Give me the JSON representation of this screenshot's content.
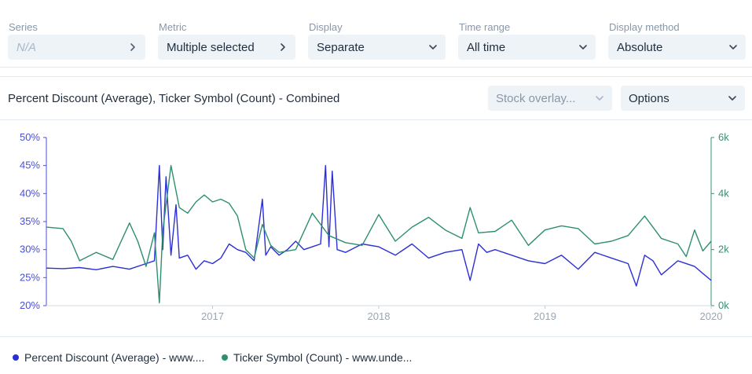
{
  "filters": [
    {
      "label": "Series",
      "value": "N/A",
      "disabled": true,
      "icon": "chevron-right-icon"
    },
    {
      "label": "Metric",
      "value": "Multiple selected",
      "disabled": false,
      "icon": "chevron-right-icon"
    },
    {
      "label": "Display",
      "value": "Separate",
      "disabled": false,
      "icon": "chevron-down-icon"
    },
    {
      "label": "Time range",
      "value": "All time",
      "disabled": false,
      "icon": "chevron-down-icon"
    },
    {
      "label": "Display method",
      "value": "Absolute",
      "disabled": false,
      "icon": "chevron-down-icon"
    }
  ],
  "card": {
    "title": "Percent Discount (Average), Ticker Symbol (Count) - Combined",
    "overlay_placeholder": "Stock overlay...",
    "options_label": "Options"
  },
  "legend": [
    {
      "label": "Percent Discount (Average) - www....",
      "color": "#2a2fd6"
    },
    {
      "label": "Ticker Symbol (Count) - www.unde...",
      "color": "#2e8f6e"
    }
  ],
  "colors": {
    "left_axis": "#4a4fd6",
    "right_axis": "#3a8f74",
    "accent_bg": "#eef3f8"
  },
  "chart_data": {
    "type": "line",
    "x_range": [
      "2016-01-01",
      "2020-01-01"
    ],
    "x_ticks": [
      "2017",
      "2018",
      "2019",
      "2020"
    ],
    "left_axis": {
      "ylim": [
        20,
        50
      ],
      "ticks": [
        "20%",
        "25%",
        "30%",
        "35%",
        "40%",
        "45%",
        "50%"
      ]
    },
    "right_axis": {
      "ylim": [
        0,
        6000
      ],
      "ticks": [
        "0k",
        "2k",
        "4k",
        "6k"
      ]
    },
    "series": [
      {
        "name": "Percent Discount (Average) - www....",
        "axis": "left",
        "x": [
          2016.0,
          2016.1,
          2016.2,
          2016.3,
          2016.4,
          2016.5,
          2016.6,
          2016.65,
          2016.68,
          2016.7,
          2016.72,
          2016.75,
          2016.78,
          2016.8,
          2016.85,
          2016.9,
          2016.95,
          2017.0,
          2017.05,
          2017.1,
          2017.15,
          2017.2,
          2017.25,
          2017.3,
          2017.32,
          2017.35,
          2017.4,
          2017.45,
          2017.5,
          2017.55,
          2017.6,
          2017.65,
          2017.68,
          2017.7,
          2017.72,
          2017.75,
          2017.8,
          2017.9,
          2018.0,
          2018.1,
          2018.2,
          2018.3,
          2018.4,
          2018.5,
          2018.55,
          2018.6,
          2018.65,
          2018.7,
          2018.8,
          2018.9,
          2019.0,
          2019.1,
          2019.2,
          2019.3,
          2019.4,
          2019.5,
          2019.55,
          2019.6,
          2019.65,
          2019.7,
          2019.8,
          2019.9,
          2020.0
        ],
        "y": [
          26.7,
          26.6,
          26.8,
          26.4,
          27.0,
          26.5,
          27.5,
          28.0,
          45.0,
          30.0,
          43.0,
          29.0,
          38.0,
          28.5,
          29.0,
          26.5,
          28.0,
          27.5,
          28.5,
          31.0,
          30.0,
          29.5,
          28.0,
          39.0,
          29.0,
          30.5,
          29.0,
          30.0,
          31.5,
          30.0,
          30.5,
          31.0,
          45.0,
          30.5,
          44.0,
          30.0,
          29.5,
          31.0,
          30.5,
          29.0,
          31.0,
          28.5,
          29.5,
          30.0,
          24.5,
          31.0,
          29.5,
          30.0,
          29.0,
          28.0,
          27.5,
          29.0,
          26.5,
          29.5,
          28.5,
          27.5,
          23.5,
          29.0,
          28.0,
          25.5,
          28.0,
          27.0,
          24.5
        ]
      },
      {
        "name": "Ticker Symbol (Count) - www.unde...",
        "axis": "right",
        "x": [
          2016.0,
          2016.1,
          2016.15,
          2016.2,
          2016.3,
          2016.4,
          2016.5,
          2016.55,
          2016.6,
          2016.65,
          2016.68,
          2016.7,
          2016.75,
          2016.8,
          2016.85,
          2016.9,
          2016.95,
          2017.0,
          2017.05,
          2017.1,
          2017.15,
          2017.2,
          2017.25,
          2017.3,
          2017.35,
          2017.4,
          2017.5,
          2017.6,
          2017.7,
          2017.8,
          2017.9,
          2018.0,
          2018.1,
          2018.2,
          2018.3,
          2018.4,
          2018.5,
          2018.55,
          2018.6,
          2018.7,
          2018.8,
          2018.9,
          2019.0,
          2019.1,
          2019.2,
          2019.3,
          2019.4,
          2019.5,
          2019.6,
          2019.7,
          2019.8,
          2019.85,
          2019.9,
          2019.95,
          2020.0
        ],
        "y": [
          2800,
          2750,
          2300,
          1600,
          1900,
          1650,
          2950,
          2300,
          1400,
          2600,
          100,
          2650,
          5000,
          3500,
          3300,
          3700,
          3950,
          3700,
          3800,
          3650,
          3200,
          2000,
          1700,
          2900,
          2150,
          1900,
          2000,
          3300,
          2500,
          2250,
          2150,
          3250,
          2300,
          2800,
          3150,
          2700,
          2400,
          3500,
          2600,
          2650,
          3050,
          2150,
          2700,
          2850,
          2750,
          2200,
          2300,
          2500,
          3200,
          2400,
          2200,
          1750,
          2700,
          1950,
          2300
        ]
      }
    ]
  }
}
